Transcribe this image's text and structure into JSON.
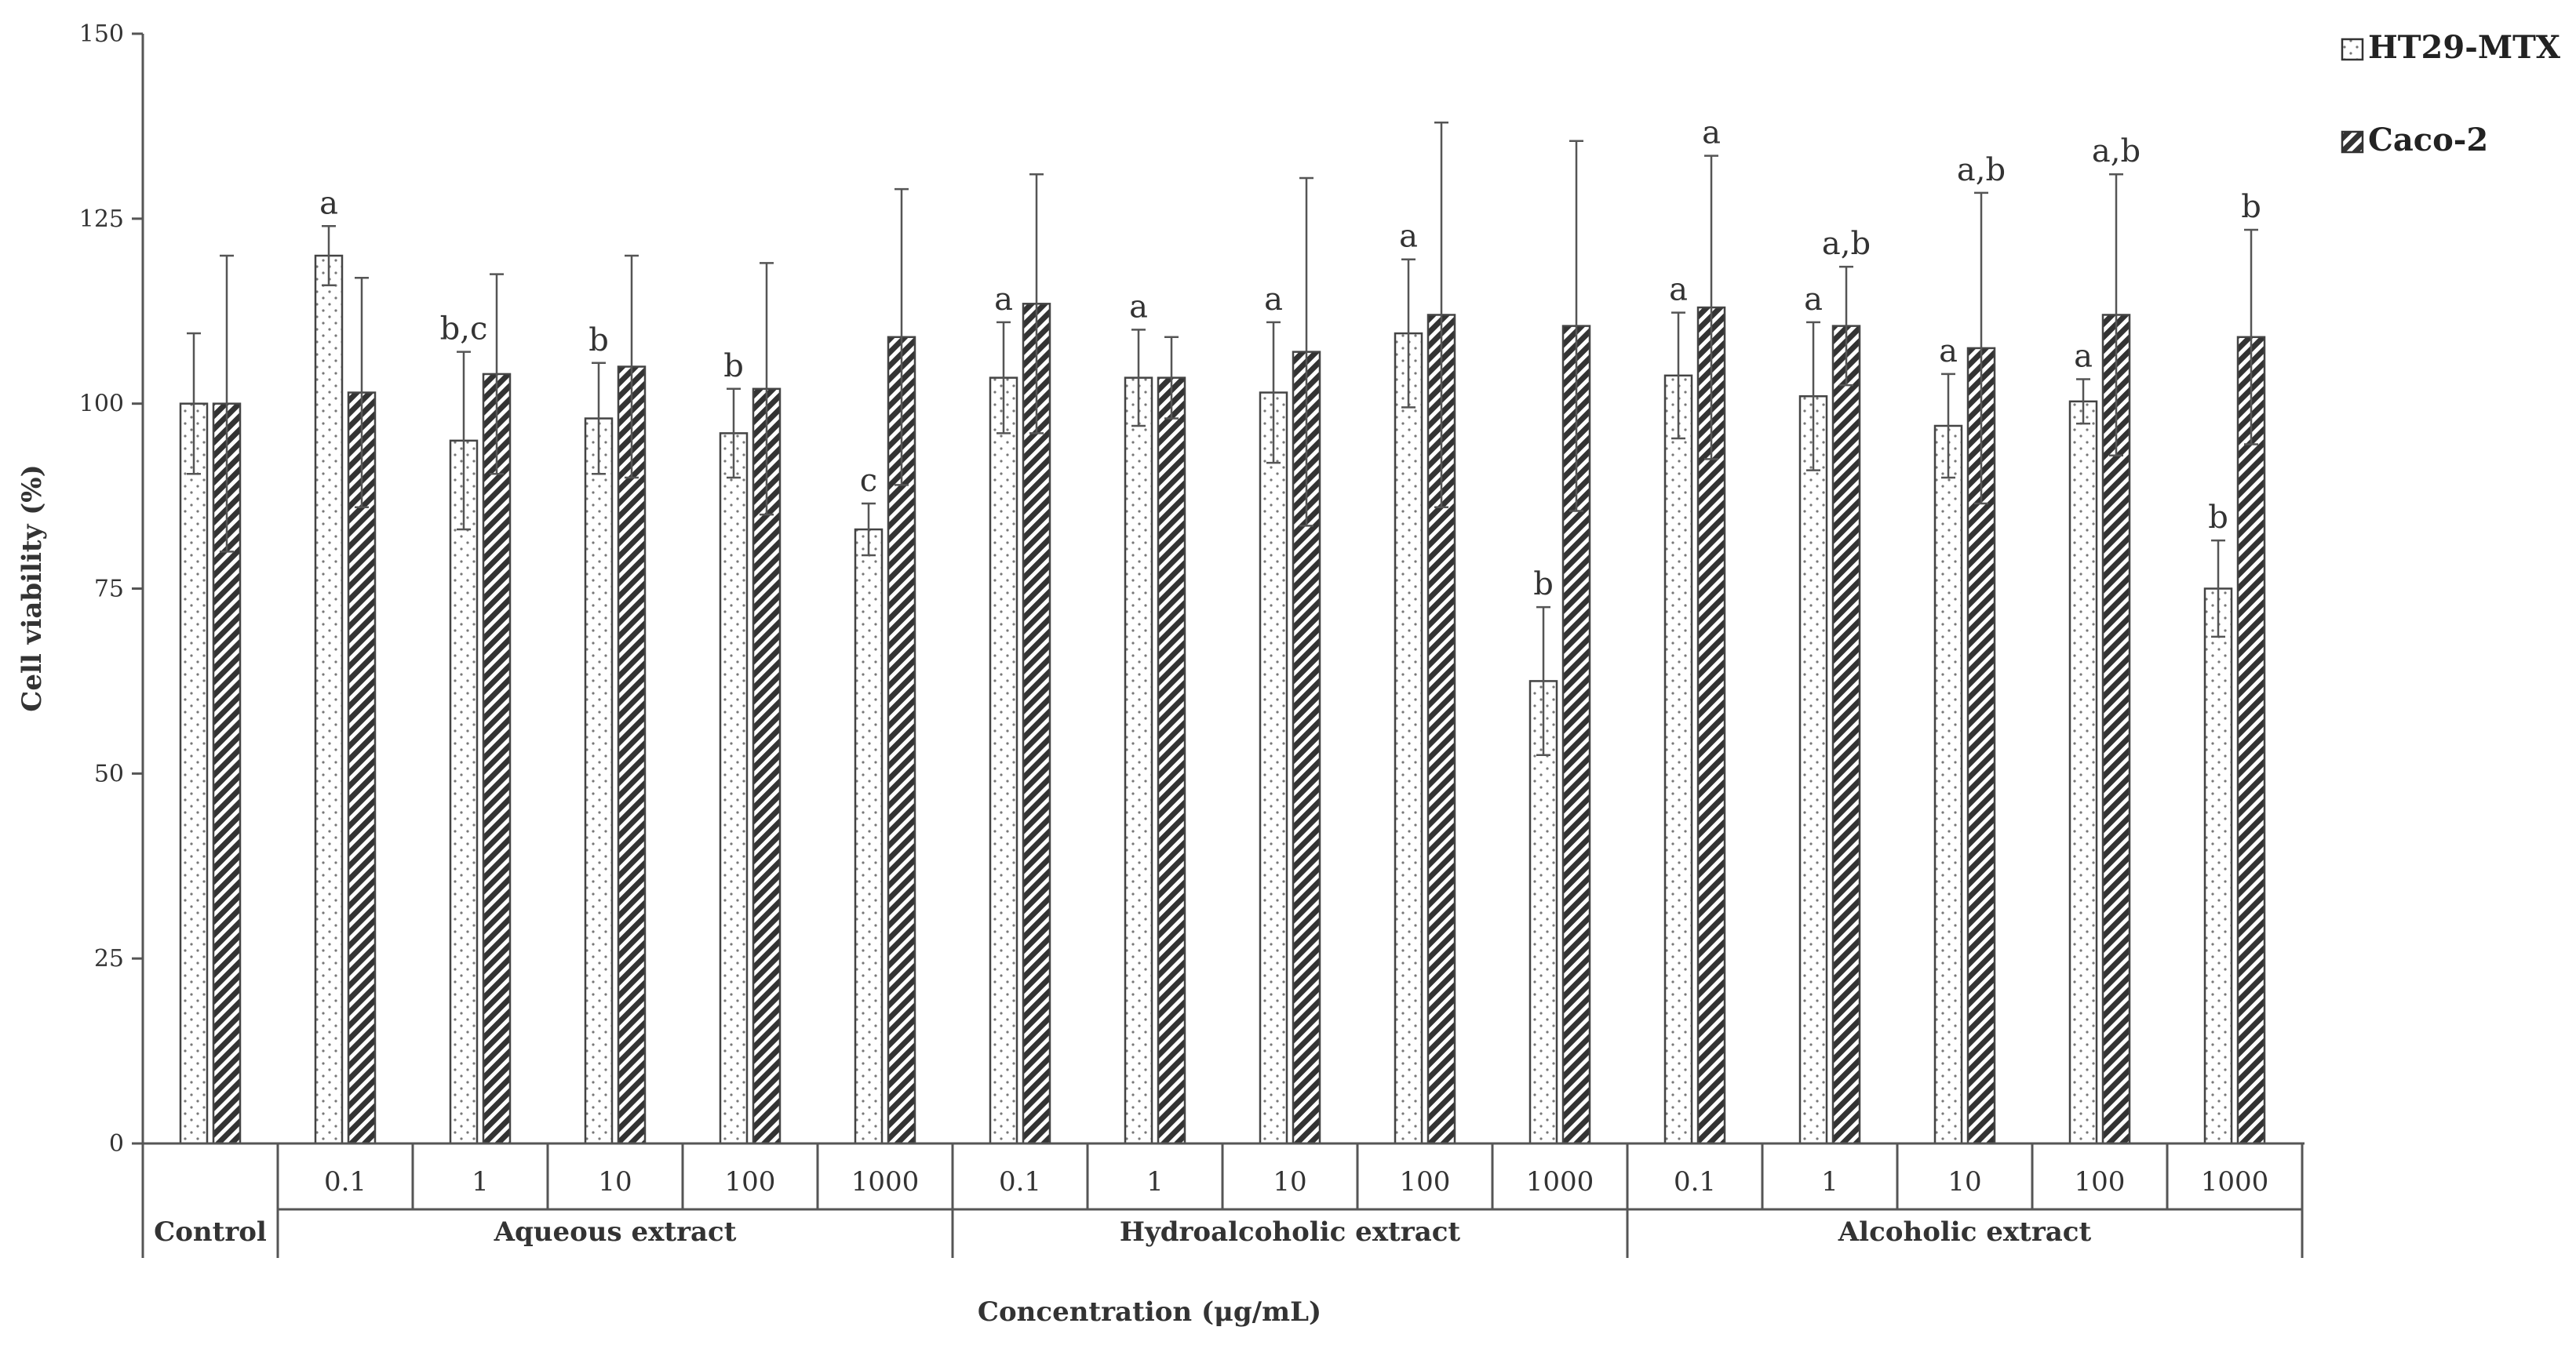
{
  "chart_data": {
    "type": "bar",
    "ylabel": "Cell viability (%)",
    "xlabel": "Concentration (μg/mL)",
    "ylim": [
      0,
      150
    ],
    "yticks": [
      "0",
      "25",
      "50",
      "75",
      "100",
      "125",
      "150"
    ],
    "grid": false,
    "legend_position": "top-right",
    "groups": [
      {
        "label": "Control",
        "categories": [
          ""
        ]
      },
      {
        "label": "Aqueous extract",
        "categories": [
          "0.1",
          "1",
          "10",
          "100",
          "1000"
        ]
      },
      {
        "label": "Hydroalcoholic extract",
        "categories": [
          "0.1",
          "1",
          "10",
          "100",
          "1000"
        ]
      },
      {
        "label": "Alcoholic extract",
        "categories": [
          "0.1",
          "1",
          "10",
          "100",
          "1000"
        ]
      }
    ],
    "series": [
      {
        "name": "HT29-MTX",
        "pattern": "dots",
        "values": [
          100,
          120,
          95,
          98,
          96,
          83,
          103.5,
          103.5,
          101.5,
          109.5,
          62.5,
          103.8,
          101,
          97,
          100.3,
          75
        ],
        "errors": [
          9.5,
          4,
          12,
          7.5,
          6,
          3.5,
          7.5,
          6.5,
          9.5,
          10,
          10,
          8.5,
          10,
          7,
          3,
          6.5
        ],
        "labels": [
          "",
          "a",
          "b,c",
          "b",
          "b",
          "c",
          "a",
          "a",
          "a",
          "a",
          "b",
          "a",
          "a",
          "a",
          "a",
          "b"
        ]
      },
      {
        "name": "Caco-2",
        "pattern": "hatch",
        "values": [
          100,
          101.5,
          104,
          105,
          102,
          109,
          113.5,
          103.5,
          107,
          112,
          110.5,
          113,
          110.5,
          107.5,
          112,
          109
        ],
        "errors": [
          20,
          15.5,
          13.5,
          15,
          17,
          20,
          17.5,
          5.5,
          23.5,
          26,
          25,
          20.5,
          8,
          21,
          19,
          14.5
        ],
        "labels": [
          "",
          "",
          "",
          "",
          "",
          "",
          "",
          "",
          "",
          "",
          "",
          "a",
          "a,b",
          "a,b",
          "a,b",
          "b"
        ]
      }
    ]
  }
}
